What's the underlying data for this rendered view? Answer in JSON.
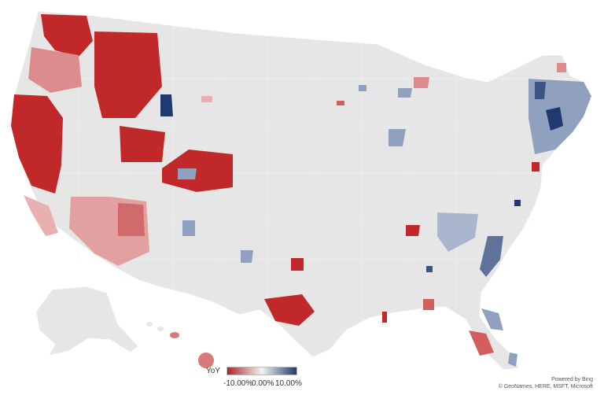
{
  "map": {
    "base_color": "#e6e6e6",
    "border_color": "#ffffff",
    "low_color": "#b22222",
    "high_color": "#1f3a6e",
    "mid_color": "#f3f3f3"
  },
  "legend": {
    "title": "YoY",
    "ticks": [
      "-10.00%",
      "0.00%",
      "10.00%"
    ]
  },
  "credit": {
    "line1": "Powered by Bing",
    "line2": "© GeoNames, HERE, MSFT, Microsoft"
  },
  "regions": [
    {
      "area": "Washington",
      "yoy": -0.09
    },
    {
      "area": "Oregon",
      "yoy": -0.07
    },
    {
      "area": "N. California",
      "yoy": -0.1
    },
    {
      "area": "Idaho / Montana",
      "yoy": -0.09
    },
    {
      "area": "Wyoming Teton",
      "yoy": 0.11
    },
    {
      "area": "Nevada",
      "yoy": -0.08
    },
    {
      "area": "Southwest",
      "yoy": -0.05
    },
    {
      "area": "Colorado",
      "yoy": -0.08
    },
    {
      "area": "Texas Central",
      "yoy": -0.1
    },
    {
      "area": "Northeast",
      "yoy": 0.06
    },
    {
      "area": "Southeast Coast",
      "yoy": 0.05
    },
    {
      "area": "Florida",
      "yoy": -0.04
    },
    {
      "area": "Hawaii",
      "yoy": -0.06
    }
  ]
}
